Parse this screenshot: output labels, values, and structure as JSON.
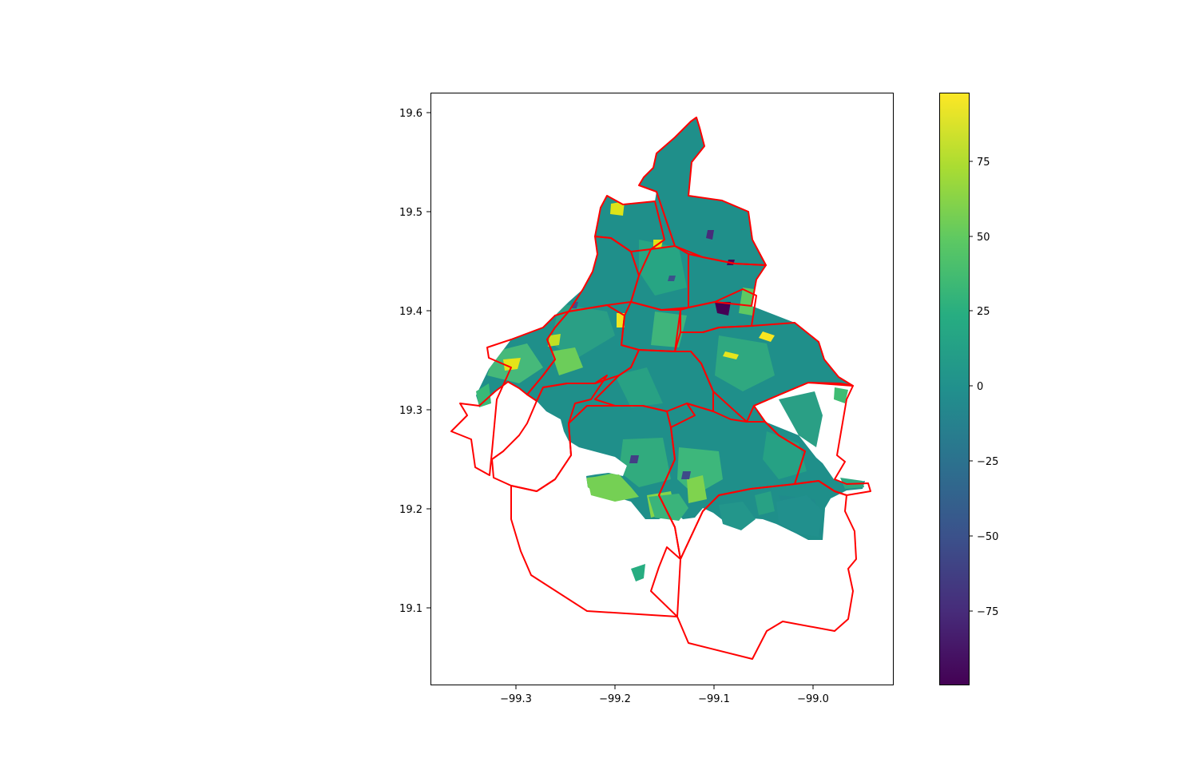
{
  "figure": {
    "background": "#ffffff"
  },
  "map": {
    "x_ticks": [
      "−99.3",
      "−99.2",
      "−99.1",
      "−99.0"
    ],
    "y_ticks": [
      "19.6",
      "19.5",
      "19.4",
      "19.3",
      "19.2",
      "19.1"
    ],
    "boundary_color": "#ff0000",
    "fill_color_base": "#1f8f8a",
    "xlim": [
      -99.38,
      -98.92
    ],
    "ylim": [
      19.02,
      19.62
    ]
  },
  "colorbar": {
    "colormap": "viridis",
    "range": [
      -100,
      98
    ],
    "ticks": [
      "75",
      "50",
      "25",
      "0",
      "−25",
      "−50",
      "−75"
    ],
    "tick_values": [
      75,
      50,
      25,
      0,
      -25,
      -50,
      -75
    ]
  },
  "chart_data": {
    "type": "choropleth",
    "title": "",
    "xlabel": "",
    "ylabel": "",
    "xlim": [
      -99.38,
      -98.92
    ],
    "ylim": [
      19.02,
      19.62
    ],
    "colorbar_range": [
      -100,
      98
    ],
    "boundary_regions": 16,
    "dominant_value_range": [
      0,
      25
    ]
  }
}
